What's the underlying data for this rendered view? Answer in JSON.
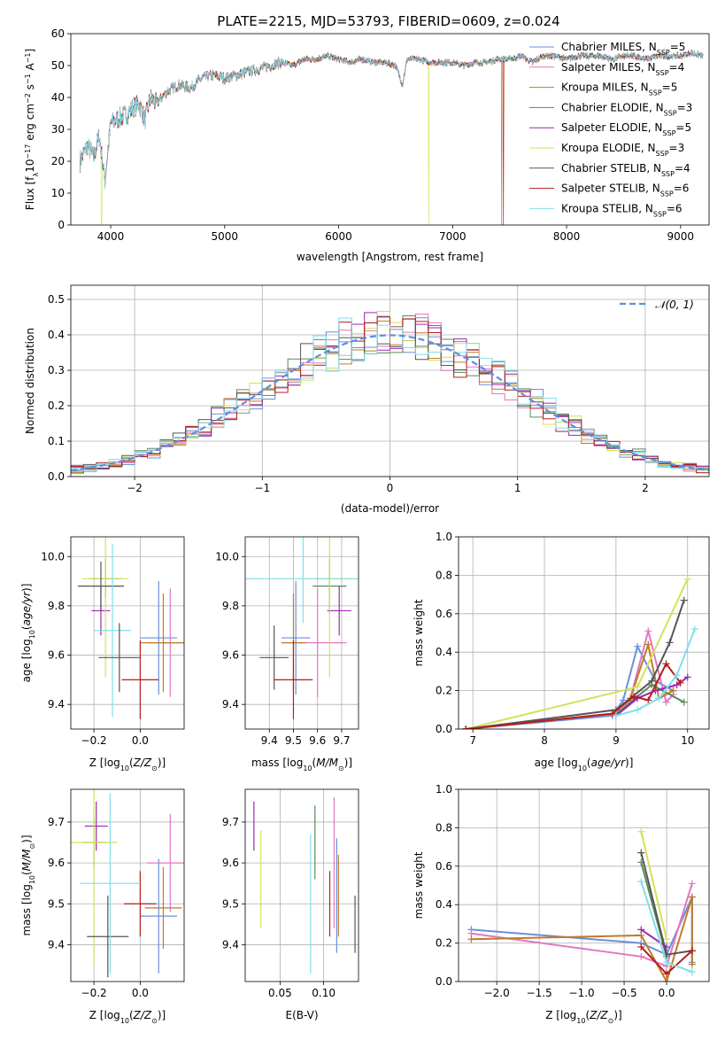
{
  "figure": {
    "title": "PLATE=2215, MJD=53793, FIBERID=0609, z=0.024"
  },
  "models": [
    {
      "name": "Chabrier MILES",
      "nssp": "5",
      "color": "#6b8fd9"
    },
    {
      "name": "Salpeter MILES",
      "nssp": "4",
      "color": "#e377c2"
    },
    {
      "name": "Kroupa MILES",
      "nssp": "5",
      "color": "#c07a2a"
    },
    {
      "name": "Chabrier ELODIE",
      "nssp": "3",
      "color": "#5a8a5a"
    },
    {
      "name": "Salpeter ELODIE",
      "nssp": "5",
      "color": "#9c27b0"
    },
    {
      "name": "Kroupa ELODIE",
      "nssp": "3",
      "color": "#d4e157"
    },
    {
      "name": "Chabrier STELIB",
      "nssp": "4",
      "color": "#555555"
    },
    {
      "name": "Salpeter STELIB",
      "nssp": "6",
      "color": "#b71c1c"
    },
    {
      "name": "Kroupa STELIB",
      "nssp": "6",
      "color": "#80deea"
    }
  ],
  "chart_data": [
    {
      "id": "spectrum",
      "type": "line",
      "xlabel": "wavelength [Angstrom, rest frame]",
      "ylabel": "Flux [f",
      "ylabel_parts": [
        "Flux [f",
        "λ",
        "10",
        "−17",
        " erg cm",
        "−2",
        " s",
        "−1",
        " A",
        "−1",
        "]"
      ],
      "xlim": [
        3650,
        9250
      ],
      "ylim": [
        0,
        60
      ],
      "xticks": [
        4000,
        5000,
        6000,
        7000,
        8000,
        9000
      ],
      "yticks": [
        0,
        10,
        20,
        30,
        40,
        50,
        60
      ],
      "x": [
        3730,
        3800,
        3850,
        3900,
        3950,
        4000,
        4050,
        4100,
        4150,
        4200,
        4250,
        4300,
        4350,
        4400,
        4500,
        4600,
        4700,
        4800,
        4900,
        5000,
        5100,
        5200,
        5300,
        5400,
        5500,
        5600,
        5700,
        5800,
        5900,
        6000,
        6100,
        6200,
        6300,
        6400,
        6500,
        6560,
        6600,
        6700,
        6800,
        6900,
        7000,
        7100,
        7200,
        7300,
        7400,
        7500,
        7600,
        7700,
        7800,
        7900,
        8000,
        8100,
        8200,
        8300,
        8400,
        8500,
        8600,
        8700,
        8800,
        8900,
        9000,
        9100,
        9200
      ],
      "y": [
        20,
        25,
        21,
        28,
        14,
        32,
        33,
        34,
        35,
        37,
        38,
        33,
        40,
        38,
        42,
        44,
        43,
        46,
        47,
        46,
        47,
        48,
        49,
        50,
        51,
        50,
        52,
        52,
        53,
        52,
        51,
        52,
        51,
        51,
        50,
        44,
        52,
        52,
        51,
        51,
        51,
        50,
        51,
        51,
        52,
        52,
        53,
        51,
        53,
        53,
        52,
        53,
        53,
        53,
        52,
        53,
        53,
        52,
        53,
        53,
        53,
        54,
        53
      ],
      "dropouts": [
        [
          3920,
          "Kroupa ELODIE"
        ],
        [
          6790,
          "Kroupa ELODIE"
        ],
        [
          7430,
          "Kroupa MILES"
        ],
        [
          7445,
          "Salpeter STELIB"
        ]
      ],
      "legend": "upper-right"
    },
    {
      "id": "residuals",
      "type": "step",
      "xlabel": "(data-model)/error",
      "ylabel": "Normed distribution",
      "xlim": [
        -2.5,
        2.5
      ],
      "ylim": [
        0,
        0.54
      ],
      "xticks": [
        -2,
        -1,
        0,
        1,
        2
      ],
      "xticklabels": [
        "−2",
        "−1",
        "0",
        "1",
        "2"
      ],
      "yticks": [
        0.0,
        0.1,
        0.2,
        0.3,
        0.4,
        0.5
      ],
      "yticklabels": [
        "0.0",
        "0.1",
        "0.2",
        "0.3",
        "0.4",
        "0.5"
      ],
      "bin_width": 0.1,
      "gauss_label": "𝒩(0, 1)",
      "gauss_color": "#5b8ee6",
      "legend": "upper-right"
    },
    {
      "id": "age-vs-Z",
      "type": "scatter",
      "xlabel": "Z [log",
      "ylabel": "age  [log",
      "xlim": [
        -0.3,
        0.19
      ],
      "ylim": [
        9.3,
        10.08
      ],
      "xticks": [
        -0.2,
        0.0
      ],
      "xticklabels": [
        "−0.2",
        "0.0"
      ],
      "yticks": [
        9.4,
        9.6,
        9.8,
        10.0
      ],
      "yticklabels": [
        "9.4",
        "9.6",
        "9.8",
        "10.0"
      ],
      "points": [
        {
          "model": "Chabrier MILES",
          "x": 0.08,
          "y": 9.67,
          "xerr": 0.08,
          "yerr": 0.23
        },
        {
          "model": "Salpeter MILES",
          "x": 0.13,
          "y": 9.65,
          "xerr": 0.1,
          "yerr": 0.22
        },
        {
          "model": "Kroupa MILES",
          "x": 0.1,
          "y": 9.65,
          "xerr": 0.1,
          "yerr": 0.2
        },
        {
          "model": "Chabrier ELODIE",
          "x": -0.15,
          "y": 9.91,
          "xerr": 0.07,
          "yerr": 0.08
        },
        {
          "model": "Salpeter ELODIE",
          "x": -0.17,
          "y": 9.78,
          "xerr": 0.04,
          "yerr": 0.1
        },
        {
          "model": "Kroupa ELODIE",
          "x": -0.15,
          "y": 9.91,
          "xerr": 0.1,
          "yerr": 0.4
        },
        {
          "model": "Chabrier STELIB",
          "x": -0.17,
          "y": 9.88,
          "xerr": 0.1,
          "yerr": 0.1
        },
        {
          "model": "Salpeter STELIB",
          "x": 0.0,
          "y": 9.5,
          "xerr": 0.08,
          "yerr": 0.16
        },
        {
          "model": "Kroupa STELIB",
          "x": -0.12,
          "y": 9.7,
          "xerr": 0.08,
          "yerr": 0.35
        },
        {
          "model": "Chabrier STELIB",
          "x": -0.09,
          "y": 9.59,
          "xerr": 0.09,
          "yerr": 0.14
        }
      ]
    },
    {
      "id": "age-vs-mass",
      "type": "scatter",
      "xlabel": "mass [log",
      "xlim": [
        9.3,
        9.77
      ],
      "ylim": [
        9.3,
        10.08
      ],
      "xticks": [
        9.4,
        9.5,
        9.6,
        9.7
      ],
      "xticklabels": [
        "9.4",
        "9.5",
        "9.6",
        "9.7"
      ],
      "yticks": [
        9.4,
        9.6,
        9.8,
        10.0
      ],
      "yticklabels": [
        "9.4",
        "9.6",
        "9.8",
        "10.0"
      ],
      "points": [
        {
          "model": "Chabrier MILES",
          "x": 9.51,
          "y": 9.67,
          "xerr": 0.06,
          "yerr": 0.23
        },
        {
          "model": "Salpeter MILES",
          "x": 9.6,
          "y": 9.65,
          "xerr": 0.12,
          "yerr": 0.22
        },
        {
          "model": "Kroupa MILES",
          "x": 9.5,
          "y": 9.65,
          "xerr": 0.05,
          "yerr": 0.2
        },
        {
          "model": "Chabrier ELODIE",
          "x": 9.65,
          "y": 9.88,
          "xerr": 0.07,
          "yerr": 0.11
        },
        {
          "model": "Salpeter ELODIE",
          "x": 9.69,
          "y": 9.78,
          "xerr": 0.05,
          "yerr": 0.1
        },
        {
          "model": "Kroupa ELODIE",
          "x": 9.65,
          "y": 9.91,
          "xerr": 0.1,
          "yerr": 0.4
        },
        {
          "model": "Chabrier STELIB",
          "x": 9.42,
          "y": 9.59,
          "xerr": 0.06,
          "yerr": 0.13
        },
        {
          "model": "Salpeter STELIB",
          "x": 9.5,
          "y": 9.5,
          "xerr": 0.08,
          "yerr": 0.16
        },
        {
          "model": "Kroupa STELIB",
          "x": 9.54,
          "y": 9.91,
          "xerr": 0.26,
          "yerr": 0.18
        }
      ]
    },
    {
      "id": "weight-vs-age",
      "type": "line",
      "xlabel": "age  [log",
      "ylabel": "mass weight",
      "xlim": [
        6.8,
        10.3
      ],
      "ylim": [
        0,
        1.0
      ],
      "xticks": [
        7,
        8,
        9,
        10
      ],
      "xticklabels": [
        "7",
        "8",
        "9",
        "10"
      ],
      "yticks": [
        0.0,
        0.2,
        0.4,
        0.6,
        0.8,
        1.0
      ],
      "yticklabels": [
        "0.0",
        "0.2",
        "0.4",
        "0.6",
        "0.8",
        "1.0"
      ],
      "series": [
        {
          "model": "Chabrier MILES",
          "x": [
            6.9,
            8.95,
            9.1,
            9.3,
            9.55,
            9.8
          ],
          "y": [
            0.0,
            0.07,
            0.15,
            0.43,
            0.25,
            0.2
          ]
        },
        {
          "model": "Salpeter MILES",
          "x": [
            6.9,
            8.95,
            9.2,
            9.45,
            9.7,
            9.8
          ],
          "y": [
            0.0,
            0.08,
            0.16,
            0.51,
            0.14,
            0.18
          ]
        },
        {
          "model": "Kroupa MILES",
          "x": [
            6.9,
            8.95,
            9.2,
            9.45,
            9.6,
            9.8
          ],
          "y": [
            0.0,
            0.08,
            0.16,
            0.44,
            0.16,
            0.2
          ]
        },
        {
          "model": "Chabrier ELODIE",
          "x": [
            9.0,
            9.5,
            9.95
          ],
          "y": [
            0.08,
            0.23,
            0.14
          ]
        },
        {
          "model": "Salpeter ELODIE",
          "x": [
            9.0,
            9.3,
            9.55,
            9.85,
            10.0
          ],
          "y": [
            0.07,
            0.16,
            0.2,
            0.23,
            0.27
          ]
        },
        {
          "model": "Kroupa ELODIE",
          "x": [
            6.9,
            9.3,
            10.0
          ],
          "y": [
            0.0,
            0.22,
            0.78
          ]
        },
        {
          "model": "Chabrier STELIB",
          "x": [
            6.9,
            9.0,
            9.5,
            9.75,
            9.95
          ],
          "y": [
            0.0,
            0.1,
            0.25,
            0.45,
            0.67
          ]
        },
        {
          "model": "Salpeter STELIB",
          "x": [
            6.9,
            8.95,
            9.25,
            9.45,
            9.7,
            9.9
          ],
          "y": [
            0.0,
            0.08,
            0.17,
            0.15,
            0.34,
            0.24
          ]
        },
        {
          "model": "Kroupa STELIB",
          "x": [
            9.0,
            9.3,
            9.6,
            9.85,
            10.1
          ],
          "y": [
            0.07,
            0.1,
            0.16,
            0.28,
            0.52
          ]
        }
      ]
    },
    {
      "id": "mass-vs-Z",
      "type": "scatter",
      "xlabel": "Z [log",
      "ylabel": "mass [log",
      "xlim": [
        -0.3,
        0.19
      ],
      "ylim": [
        9.31,
        9.78
      ],
      "xticks": [
        -0.2,
        0.0
      ],
      "xticklabels": [
        "−0.2",
        "0.0"
      ],
      "yticks": [
        9.4,
        9.5,
        9.6,
        9.7
      ],
      "yticklabels": [
        "9.4",
        "9.5",
        "9.6",
        "9.7"
      ],
      "points": [
        {
          "model": "Chabrier MILES",
          "x": 0.08,
          "y": 9.47,
          "xerr": 0.08,
          "yerr": 0.14
        },
        {
          "model": "Salpeter MILES",
          "x": 0.13,
          "y": 9.6,
          "xerr": 0.1,
          "yerr": 0.12
        },
        {
          "model": "Kroupa MILES",
          "x": 0.1,
          "y": 9.49,
          "xerr": 0.08,
          "yerr": 0.1
        },
        {
          "model": "Chabrier ELODIE",
          "x": -0.2,
          "y": 9.65,
          "xerr": 0.05,
          "yerr": 0.06
        },
        {
          "model": "Salpeter ELODIE",
          "x": -0.19,
          "y": 9.69,
          "xerr": 0.05,
          "yerr": 0.06
        },
        {
          "model": "Kroupa ELODIE",
          "x": -0.2,
          "y": 9.65,
          "xerr": 0.1,
          "yerr": 0.3
        },
        {
          "model": "Chabrier STELIB",
          "x": -0.14,
          "y": 9.42,
          "xerr": 0.09,
          "yerr": 0.1
        },
        {
          "model": "Salpeter STELIB",
          "x": 0.0,
          "y": 9.5,
          "xerr": 0.07,
          "yerr": 0.08
        },
        {
          "model": "Kroupa STELIB",
          "x": -0.13,
          "y": 9.55,
          "xerr": 0.13,
          "yerr": 0.22
        }
      ]
    },
    {
      "id": "mass-vs-EBV",
      "type": "scatter",
      "xlabel": "E(B-V)",
      "xlim": [
        0.01,
        0.14
      ],
      "ylim": [
        9.31,
        9.78
      ],
      "xticks": [
        0.05,
        0.1
      ],
      "xticklabels": [
        "0.05",
        "0.10"
      ],
      "yticks": [
        9.4,
        9.5,
        9.6,
        9.7
      ],
      "yticklabels": [
        "9.4",
        "9.5",
        "9.6",
        "9.7"
      ],
      "points": [
        {
          "model": "Chabrier MILES",
          "x": 0.115,
          "y": 9.52,
          "xerr": 0,
          "yerr": 0.14
        },
        {
          "model": "Salpeter MILES",
          "x": 0.112,
          "y": 9.6,
          "xerr": 0,
          "yerr": 0.16
        },
        {
          "model": "Kroupa MILES",
          "x": 0.117,
          "y": 9.52,
          "xerr": 0,
          "yerr": 0.1
        },
        {
          "model": "Chabrier ELODIE",
          "x": 0.09,
          "y": 9.65,
          "xerr": 0,
          "yerr": 0.09
        },
        {
          "model": "Salpeter ELODIE",
          "x": 0.02,
          "y": 9.69,
          "xerr": 0,
          "yerr": 0.06
        },
        {
          "model": "Kroupa ELODIE",
          "x": 0.028,
          "y": 9.56,
          "xerr": 0,
          "yerr": 0.12
        },
        {
          "model": "Chabrier STELIB",
          "x": 0.136,
          "y": 9.45,
          "xerr": 0,
          "yerr": 0.07
        },
        {
          "model": "Salpeter STELIB",
          "x": 0.107,
          "y": 9.5,
          "xerr": 0,
          "yerr": 0.08
        },
        {
          "model": "Kroupa STELIB",
          "x": 0.085,
          "y": 9.5,
          "xerr": 0,
          "yerr": 0.17
        }
      ]
    },
    {
      "id": "weight-vs-Z",
      "type": "line",
      "xlabel": "Z [log",
      "ylabel": "mass weight",
      "xlim": [
        -2.45,
        0.5
      ],
      "ylim": [
        0,
        1.0
      ],
      "xticks": [
        -2.0,
        -1.5,
        -1.0,
        -0.5,
        0.0
      ],
      "xticklabels": [
        "−2.0",
        "−1.5",
        "−1.0",
        "−0.5",
        "0.0"
      ],
      "yticks": [
        0.0,
        0.2,
        0.4,
        0.6,
        0.8,
        1.0
      ],
      "yticklabels": [
        "0.0",
        "0.2",
        "0.4",
        "0.6",
        "0.8",
        "1.0"
      ],
      "series": [
        {
          "model": "Chabrier MILES",
          "x": [
            -2.3,
            -0.3,
            0.0,
            0.3,
            0.3
          ],
          "y": [
            0.27,
            0.2,
            0.14,
            0.44,
            0.1
          ]
        },
        {
          "model": "Salpeter MILES",
          "x": [
            -2.3,
            -0.3,
            0.0,
            0.3
          ],
          "y": [
            0.25,
            0.13,
            0.08,
            0.51
          ]
        },
        {
          "model": "Kroupa MILES",
          "x": [
            -2.3,
            -0.3,
            0.0,
            0.3,
            0.3
          ],
          "y": [
            0.22,
            0.24,
            0.0,
            0.44,
            0.09
          ]
        },
        {
          "model": "Chabrier ELODIE",
          "x": [
            -0.3,
            0.0
          ],
          "y": [
            0.62,
            0.13
          ]
        },
        {
          "model": "Salpeter ELODIE",
          "x": [
            -0.3,
            0.0
          ],
          "y": [
            0.27,
            0.18
          ]
        },
        {
          "model": "Kroupa ELODIE",
          "x": [
            -0.3,
            0.0
          ],
          "y": [
            0.78,
            0.22
          ]
        },
        {
          "model": "Chabrier STELIB",
          "x": [
            -0.3,
            0.0,
            0.3
          ],
          "y": [
            0.67,
            0.14,
            0.16
          ]
        },
        {
          "model": "Salpeter STELIB",
          "x": [
            -0.3,
            0.0,
            0.3
          ],
          "y": [
            0.18,
            0.04,
            0.16
          ]
        },
        {
          "model": "Kroupa STELIB",
          "x": [
            -0.3,
            0.0,
            0.3
          ],
          "y": [
            0.52,
            0.1,
            0.05
          ]
        }
      ]
    }
  ]
}
